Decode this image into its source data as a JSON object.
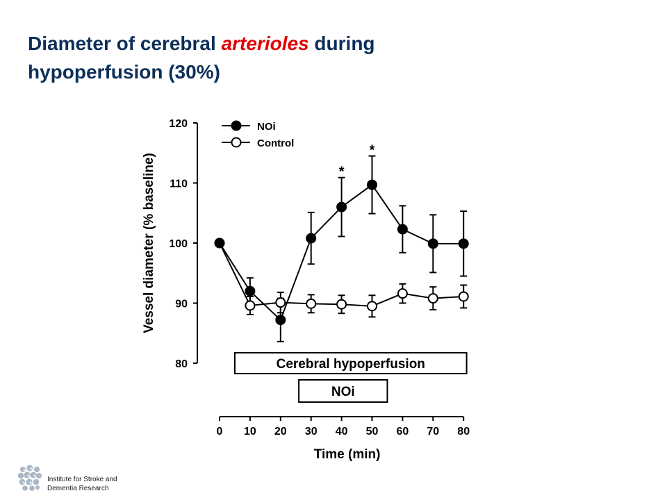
{
  "slide": {
    "title_line1_before": "Diameter of cerebral ",
    "title_line1_accent": "arterioles",
    "title_line1_after": " during",
    "title_line2": "hypoperfusion (30%)"
  },
  "footer": {
    "institute_line1": "Institute for Stroke and",
    "institute_line2": "Dementia Research"
  },
  "chart_data": {
    "type": "line",
    "title": "",
    "xlabel": "Time (min)",
    "ylabel": "Vessel diameter (% baseline)",
    "xlim": [
      0,
      80
    ],
    "ylim": [
      80,
      120
    ],
    "x_ticks": [
      0,
      10,
      20,
      30,
      40,
      50,
      60,
      70,
      80
    ],
    "y_ticks": [
      80,
      90,
      100,
      110,
      120
    ],
    "grid": false,
    "legend_position": "top-left",
    "series": [
      {
        "name": "NOi",
        "marker": "filled-circle",
        "color": "#000000",
        "x": [
          0,
          10,
          20,
          30,
          40,
          50,
          60,
          70,
          80
        ],
        "y": [
          100,
          92.0,
          87.2,
          100.8,
          106.0,
          109.7,
          102.3,
          99.9,
          99.9
        ],
        "error": [
          0,
          2.2,
          3.6,
          4.3,
          4.9,
          4.8,
          3.9,
          4.8,
          5.4
        ]
      },
      {
        "name": "Control",
        "marker": "open-circle",
        "color": "#000000",
        "x": [
          0,
          10,
          20,
          30,
          40,
          50,
          60,
          70,
          80
        ],
        "y": [
          100,
          89.6,
          90.1,
          89.9,
          89.8,
          89.5,
          91.6,
          90.8,
          91.1
        ],
        "error": [
          0,
          1.5,
          1.7,
          1.5,
          1.5,
          1.8,
          1.6,
          1.9,
          1.9
        ]
      }
    ],
    "annotations": [
      {
        "text": "*",
        "x": 40
      },
      {
        "text": "*",
        "x": 50
      }
    ],
    "periods": [
      {
        "label": "Cerebral hypoperfusion",
        "start": 5,
        "end": 81
      },
      {
        "label": "NOi",
        "start": 26,
        "end": 55
      }
    ]
  }
}
